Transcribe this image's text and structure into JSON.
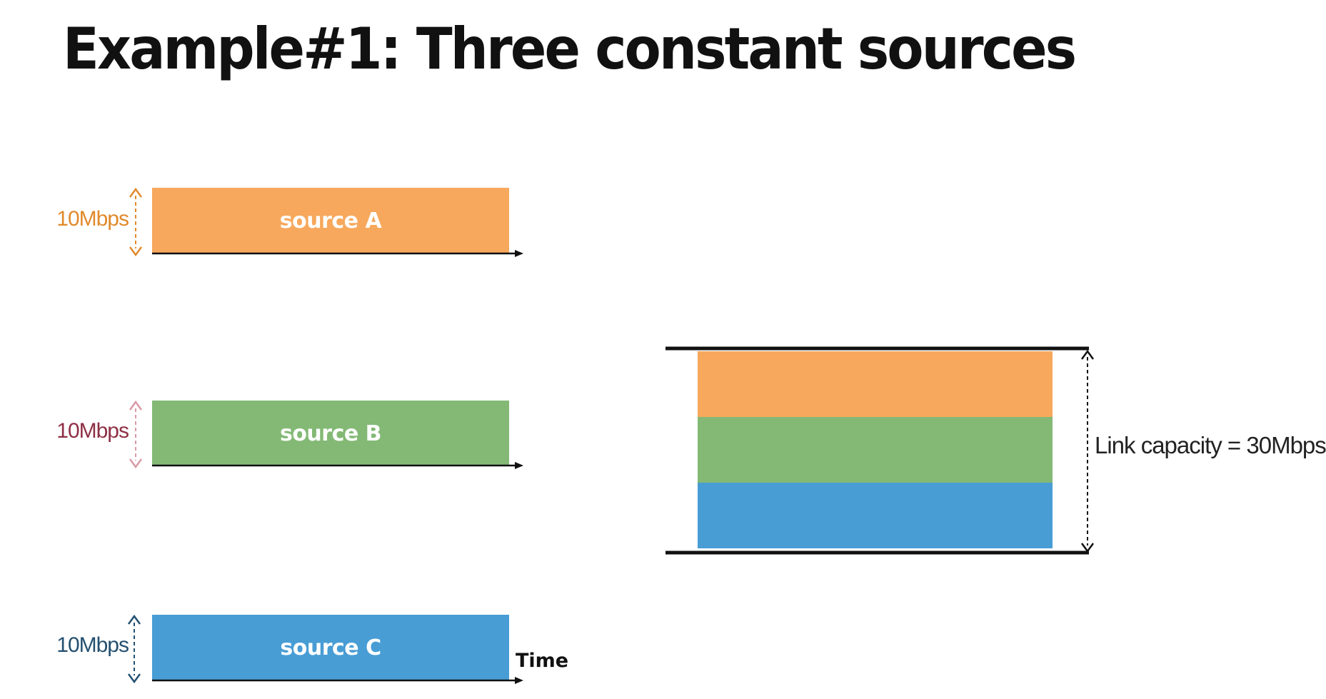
{
  "title": "Example#1: Three constant sources",
  "sources": [
    {
      "label": "source A",
      "rate": "10Mbps",
      "rate_mbps": 10,
      "fill_color": "#F7A85C",
      "rate_color": "#E08A2C"
    },
    {
      "label": "source B",
      "rate": "10Mbps",
      "rate_mbps": 10,
      "fill_color": "#83B975",
      "rate_color": "#8E2F45"
    },
    {
      "label": "source C",
      "rate": "10Mbps",
      "rate_mbps": 10,
      "fill_color": "#489DD5",
      "rate_color": "#245070"
    }
  ],
  "time_axis_label": "Time",
  "link": {
    "capacity_label": "Link capacity = 30Mbps",
    "capacity_mbps": 30,
    "line_color": "#111111"
  },
  "arrow_colors": {
    "source_a": "#E08A2C",
    "source_b": "#D99AA6",
    "source_c": "#245070",
    "link": "#111111"
  }
}
